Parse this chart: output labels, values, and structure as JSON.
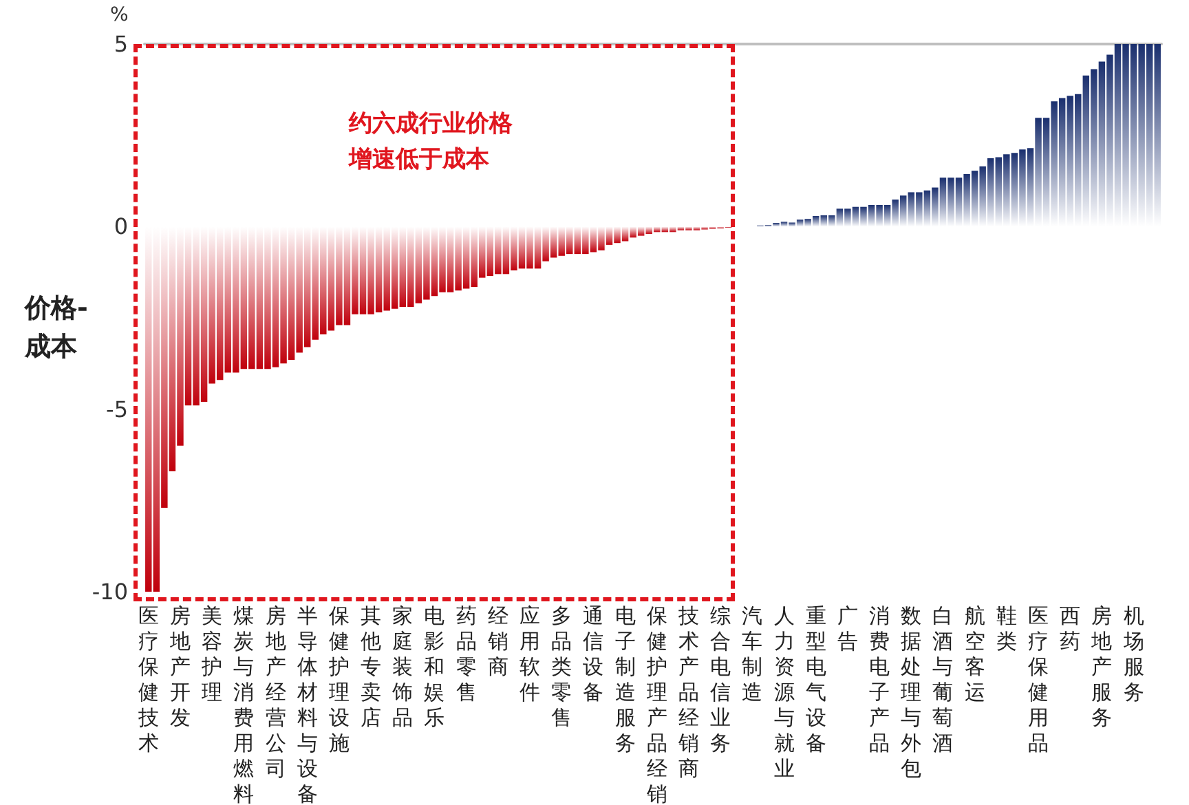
{
  "chart_data": {
    "type": "bar",
    "ylabel": "价格-成本",
    "annotations": [
      "约六成行业价格增速低于成本",
      "%"
    ],
    "categories": [
      "医疗保健技术",
      null,
      null,
      null,
      "房地产开发",
      null,
      null,
      null,
      "美容护理",
      null,
      null,
      null,
      "煤炭与消费用燃料",
      null,
      null,
      null,
      "房地产经营公司",
      null,
      null,
      null,
      "半导体材料与设备",
      null,
      null,
      null,
      "保健护理设施",
      null,
      null,
      null,
      "其他专卖店",
      null,
      null,
      null,
      "家庭装饰品",
      null,
      null,
      null,
      "电影和娱乐",
      null,
      null,
      null,
      "药品零售",
      null,
      null,
      null,
      "经销商",
      null,
      null,
      null,
      "应用软件",
      null,
      null,
      null,
      "多品类零售",
      null,
      null,
      null,
      "通信设备",
      null,
      null,
      null,
      "电子制造服务",
      null,
      null,
      null,
      "保健护理产品经销",
      null,
      null,
      null,
      "技术产品经销商",
      null,
      null,
      null,
      "综合电信业务",
      null,
      null,
      null,
      "汽车制造",
      null,
      null,
      null,
      "人力资源与就业",
      null,
      null,
      null,
      "重型电气设备",
      null,
      null,
      null,
      "广告",
      null,
      null,
      null,
      "消费电子产品",
      null,
      null,
      null,
      "数据处理与外包",
      null,
      null,
      null,
      "白酒与葡萄酒",
      null,
      null,
      null,
      "航空客运",
      null,
      null,
      null,
      "鞋类",
      null,
      null,
      null,
      "医疗保健用品",
      null,
      null,
      null,
      "西药",
      null,
      null,
      null,
      "房地产服务",
      null,
      null,
      null,
      "机场服务",
      null,
      null,
      null
    ],
    "stacked": true,
    "series": [
      {
        "color": "#c0000c",
        "values": [
          -10,
          -10,
          -7.7,
          -6.7,
          -6.0,
          -4.9,
          -4.9,
          -4.8,
          -4.3,
          -4.2,
          -4.0,
          -4.0,
          -3.9,
          -3.9,
          -3.9,
          -3.9,
          -3.85,
          -3.75,
          -3.65,
          -3.45,
          -3.3,
          -3.1,
          -2.95,
          -2.85,
          -2.7,
          -2.7,
          -2.4,
          -2.4,
          -2.4,
          -2.35,
          -2.3,
          -2.25,
          -2.2,
          -2.2,
          -2.1,
          -2.0,
          -1.9,
          -1.8,
          -1.8,
          -1.75,
          -1.7,
          -1.65,
          -1.4,
          -1.35,
          -1.3,
          -1.3,
          -1.2,
          -1.15,
          -1.15,
          -1.15,
          -0.95,
          -0.85,
          -0.8,
          -0.75,
          -0.75,
          -0.75,
          -0.7,
          -0.65,
          -0.5,
          -0.45,
          -0.4,
          -0.3,
          -0.25,
          -0.2,
          -0.15,
          -0.15,
          -0.15,
          -0.1,
          -0.1,
          -0.1,
          -0.08,
          -0.06,
          -0.05,
          -0.03,
          null,
          null,
          null,
          null,
          null,
          null,
          null,
          null,
          null,
          null,
          null,
          null,
          null,
          null,
          null,
          null,
          null,
          null,
          null,
          null,
          null,
          null,
          null,
          null,
          null,
          null,
          null,
          null,
          null,
          null,
          null,
          null,
          null,
          null,
          null,
          null,
          null,
          null,
          null,
          null,
          null,
          null,
          null,
          null,
          null,
          null,
          null,
          null,
          null,
          null,
          null,
          null,
          null,
          null
        ]
      },
      {
        "color": "#1a2f6e",
        "values": [
          null,
          null,
          null,
          null,
          null,
          null,
          null,
          null,
          null,
          null,
          null,
          null,
          null,
          null,
          null,
          null,
          null,
          null,
          null,
          null,
          null,
          null,
          null,
          null,
          null,
          null,
          null,
          null,
          null,
          null,
          null,
          null,
          null,
          null,
          null,
          null,
          null,
          null,
          null,
          null,
          null,
          null,
          null,
          null,
          null,
          null,
          null,
          null,
          null,
          null,
          null,
          null,
          null,
          null,
          null,
          null,
          null,
          null,
          null,
          null,
          null,
          null,
          null,
          null,
          null,
          null,
          null,
          null,
          null,
          null,
          null,
          null,
          null,
          null,
          null,
          null,
          null,
          0.03,
          0.04,
          0.1,
          0.13,
          0.11,
          0.19,
          0.21,
          0.29,
          0.31,
          0.31,
          0.49,
          0.49,
          0.54,
          0.54,
          0.59,
          0.59,
          0.59,
          0.74,
          0.85,
          0.94,
          0.94,
          0.99,
          1.07,
          1.34,
          1.34,
          1.34,
          1.44,
          1.53,
          1.65,
          1.87,
          1.9,
          1.98,
          2.02,
          2.11,
          2.15,
          2.98,
          2.98,
          3.43,
          3.52,
          3.58,
          3.63,
          4.14,
          4.31,
          4.52,
          4.71,
          5,
          5,
          5,
          5,
          5,
          5
        ]
      }
    ],
    "ylim": [
      -10,
      5
    ],
    "yticks": [
      -10,
      -5,
      0,
      5
    ],
    "grid": false
  }
}
